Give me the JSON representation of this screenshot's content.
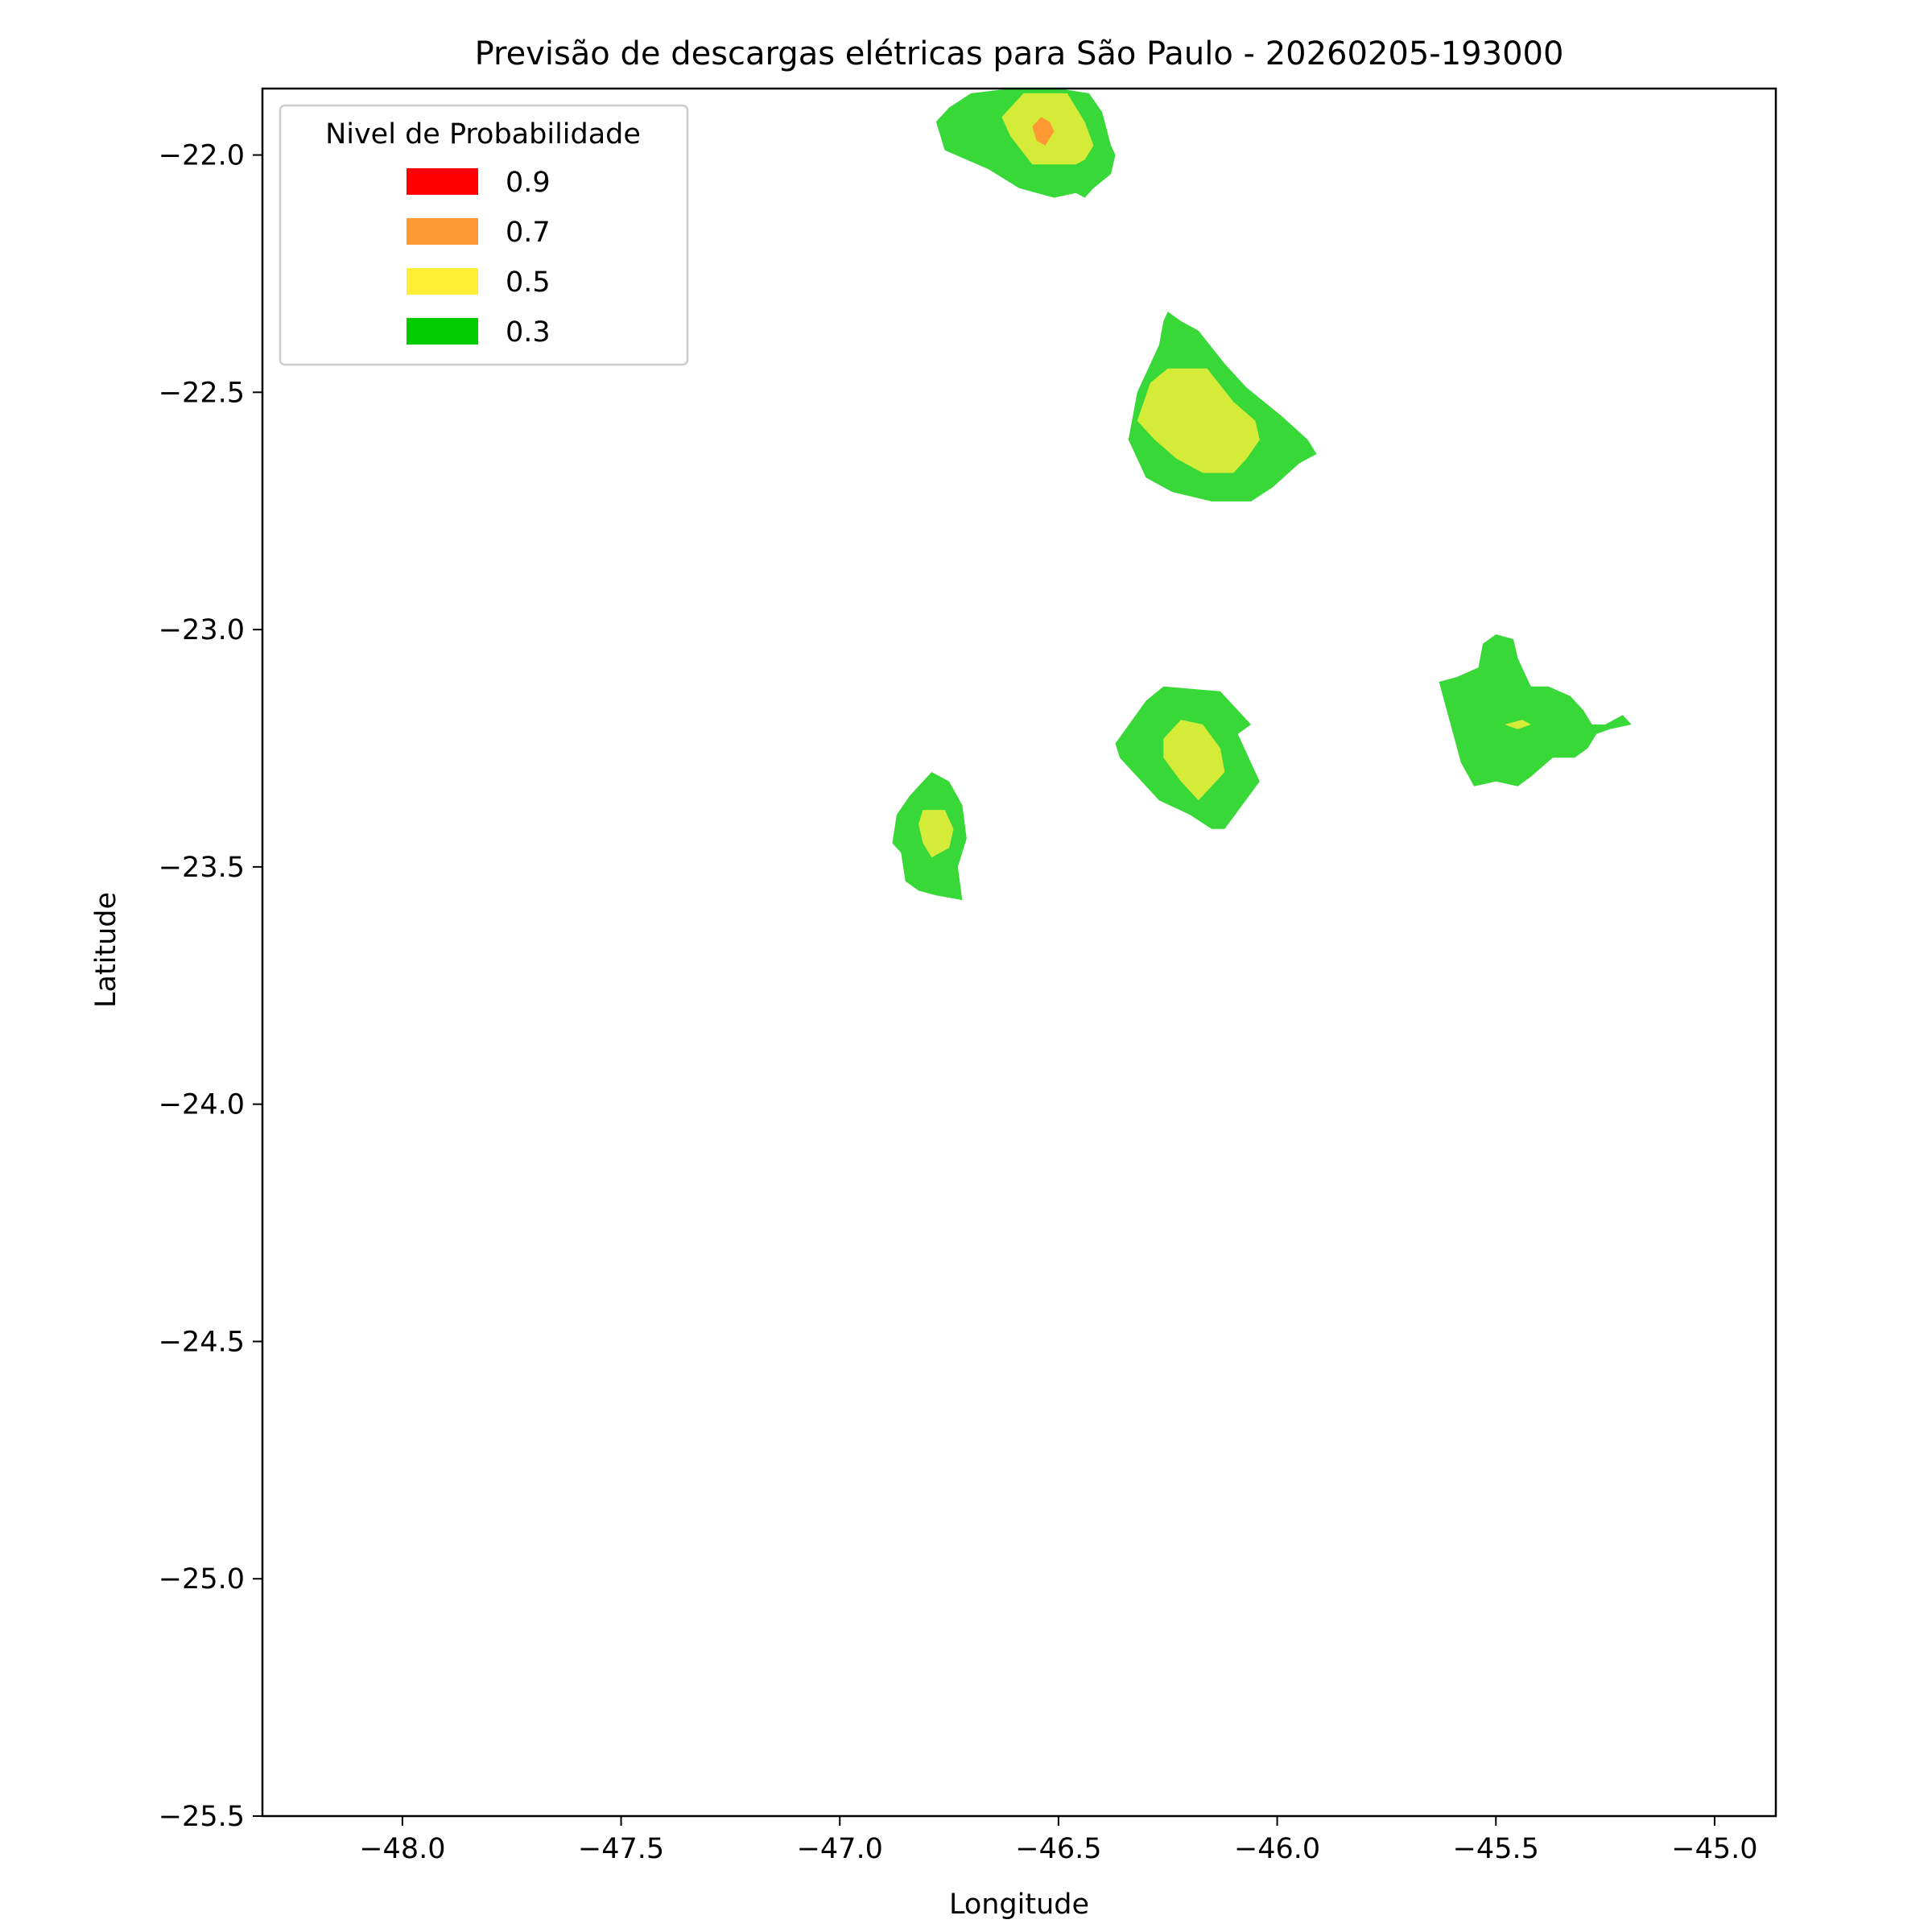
{
  "chart_data": {
    "type": "contour",
    "title": "Previsão de descargas elétricas para São Paulo - 20260205-193000",
    "xlabel": "Longitude",
    "ylabel": "Latitude",
    "xlim": [
      -48.32,
      -44.86
    ],
    "ylim": [
      -25.5,
      -21.86
    ],
    "xticks": [
      -48.0,
      -47.5,
      -47.0,
      -46.5,
      -46.0,
      -45.5,
      -45.0
    ],
    "yticks": [
      -22.0,
      -22.5,
      -23.0,
      -23.5,
      -24.0,
      -24.5,
      -25.0,
      -25.5
    ],
    "xtick_labels": [
      "−48.0",
      "−47.5",
      "−47.0",
      "−46.5",
      "−46.0",
      "−45.5",
      "−45.0"
    ],
    "ytick_labels": [
      "−22.0",
      "−22.5",
      "−23.0",
      "−23.5",
      "−24.0",
      "−24.5",
      "−25.0",
      "−25.5"
    ],
    "grid": false,
    "legend": {
      "title": "Nivel de Probabilidade",
      "placement": "upper-left",
      "entries": [
        {
          "label": "0.9",
          "color": "#ff0000"
        },
        {
          "label": "0.7",
          "color": "#ff9933"
        },
        {
          "label": "0.5",
          "color": "#ffee33"
        },
        {
          "label": "0.3",
          "color": "#00cc00"
        }
      ]
    },
    "series": [
      {
        "level": "0.3",
        "fill": "#38d838",
        "polygons": [
          [
            [
              -46.76,
              -21.99
            ],
            [
              -46.78,
              -21.93
            ],
            [
              -46.75,
              -21.9
            ],
            [
              -46.7,
              -21.87
            ],
            [
              -46.61,
              -21.86
            ],
            [
              -46.5,
              -21.86
            ],
            [
              -46.43,
              -21.87
            ],
            [
              -46.4,
              -21.91
            ],
            [
              -46.38,
              -21.98
            ],
            [
              -46.37,
              -22.0
            ],
            [
              -46.38,
              -22.04
            ],
            [
              -46.42,
              -22.07
            ],
            [
              -46.44,
              -22.09
            ],
            [
              -46.46,
              -22.08
            ],
            [
              -46.51,
              -22.09
            ],
            [
              -46.59,
              -22.07
            ],
            [
              -46.66,
              -22.03
            ]
          ],
          [
            [
              -46.34,
              -22.6
            ],
            [
              -46.32,
              -22.5
            ],
            [
              -46.3,
              -22.46
            ],
            [
              -46.27,
              -22.4
            ],
            [
              -46.26,
              -22.35
            ],
            [
              -46.25,
              -22.33
            ],
            [
              -46.22,
              -22.35
            ],
            [
              -46.18,
              -22.37
            ],
            [
              -46.12,
              -22.44
            ],
            [
              -46.07,
              -22.49
            ],
            [
              -45.99,
              -22.55
            ],
            [
              -45.93,
              -22.6
            ],
            [
              -45.91,
              -22.63
            ],
            [
              -45.95,
              -22.65
            ],
            [
              -46.01,
              -22.7
            ],
            [
              -46.06,
              -22.73
            ],
            [
              -46.15,
              -22.73
            ],
            [
              -46.24,
              -22.71
            ],
            [
              -46.3,
              -22.68
            ]
          ],
          [
            [
              -46.37,
              -23.24
            ],
            [
              -46.3,
              -23.15
            ],
            [
              -46.26,
              -23.12
            ],
            [
              -46.13,
              -23.13
            ],
            [
              -46.06,
              -23.2
            ],
            [
              -46.09,
              -23.22
            ],
            [
              -46.04,
              -23.32
            ],
            [
              -46.08,
              -23.37
            ],
            [
              -46.12,
              -23.42
            ],
            [
              -46.15,
              -23.42
            ],
            [
              -46.2,
              -23.39
            ],
            [
              -46.27,
              -23.36
            ],
            [
              -46.32,
              -23.31
            ],
            [
              -46.36,
              -23.27
            ]
          ],
          [
            [
              -46.87,
              -23.39
            ],
            [
              -46.84,
              -23.35
            ],
            [
              -46.79,
              -23.3
            ],
            [
              -46.75,
              -23.32
            ],
            [
              -46.72,
              -23.37
            ],
            [
              -46.71,
              -23.44
            ],
            [
              -46.73,
              -23.5
            ],
            [
              -46.72,
              -23.57
            ],
            [
              -46.78,
              -23.56
            ],
            [
              -46.82,
              -23.55
            ],
            [
              -46.85,
              -23.53
            ],
            [
              -46.86,
              -23.47
            ],
            [
              -46.88,
              -23.45
            ]
          ],
          [
            [
              -45.63,
              -23.11
            ],
            [
              -45.58,
              -23.28
            ],
            [
              -45.55,
              -23.33
            ],
            [
              -45.5,
              -23.32
            ],
            [
              -45.45,
              -23.33
            ],
            [
              -45.42,
              -23.31
            ],
            [
              -45.37,
              -23.27
            ],
            [
              -45.32,
              -23.27
            ],
            [
              -45.29,
              -23.25
            ],
            [
              -45.27,
              -23.22
            ],
            [
              -45.24,
              -23.21
            ],
            [
              -45.19,
              -23.2
            ],
            [
              -45.21,
              -23.18
            ],
            [
              -45.25,
              -23.2
            ],
            [
              -45.28,
              -23.2
            ],
            [
              -45.3,
              -23.17
            ],
            [
              -45.33,
              -23.14
            ],
            [
              -45.38,
              -23.12
            ],
            [
              -45.42,
              -23.12
            ],
            [
              -45.45,
              -23.06
            ],
            [
              -45.46,
              -23.02
            ],
            [
              -45.5,
              -23.01
            ],
            [
              -45.53,
              -23.03
            ],
            [
              -45.54,
              -23.08
            ],
            [
              -45.59,
              -23.1
            ]
          ]
        ]
      },
      {
        "level": "0.5",
        "fill": "#d4ec38",
        "polygons": [
          [
            [
              -46.63,
              -21.92
            ],
            [
              -46.58,
              -21.87
            ],
            [
              -46.48,
              -21.87
            ],
            [
              -46.44,
              -21.93
            ],
            [
              -46.42,
              -21.98
            ],
            [
              -46.44,
              -22.01
            ],
            [
              -46.46,
              -22.02
            ],
            [
              -46.5,
              -22.02
            ],
            [
              -46.56,
              -22.02
            ],
            [
              -46.61,
              -21.96
            ]
          ],
          [
            [
              -46.32,
              -22.56
            ],
            [
              -46.29,
              -22.48
            ],
            [
              -46.25,
              -22.45
            ],
            [
              -46.16,
              -22.45
            ],
            [
              -46.1,
              -22.52
            ],
            [
              -46.05,
              -22.56
            ],
            [
              -46.04,
              -22.6
            ],
            [
              -46.07,
              -22.64
            ],
            [
              -46.1,
              -22.67
            ],
            [
              -46.17,
              -22.67
            ],
            [
              -46.23,
              -22.64
            ],
            [
              -46.28,
              -22.6
            ]
          ],
          [
            [
              -46.26,
              -23.23
            ],
            [
              -46.22,
              -23.19
            ],
            [
              -46.17,
              -23.2
            ],
            [
              -46.13,
              -23.25
            ],
            [
              -46.12,
              -23.3
            ],
            [
              -46.15,
              -23.33
            ],
            [
              -46.18,
              -23.36
            ],
            [
              -46.22,
              -23.32
            ],
            [
              -46.26,
              -23.27
            ]
          ],
          [
            [
              -46.82,
              -23.41
            ],
            [
              -46.81,
              -23.38
            ],
            [
              -46.76,
              -23.38
            ],
            [
              -46.74,
              -23.42
            ],
            [
              -46.75,
              -23.46
            ],
            [
              -46.79,
              -23.48
            ],
            [
              -46.81,
              -23.45
            ]
          ],
          [
            [
              -45.48,
              -23.2
            ],
            [
              -45.45,
              -23.21
            ],
            [
              -45.42,
              -23.2
            ],
            [
              -45.44,
              -23.19
            ]
          ]
        ]
      },
      {
        "level": "0.7",
        "fill": "#ff9933",
        "polygons": [
          [
            [
              -46.56,
              -21.94
            ],
            [
              -46.54,
              -21.92
            ],
            [
              -46.52,
              -21.93
            ],
            [
              -46.51,
              -21.95
            ],
            [
              -46.53,
              -21.98
            ],
            [
              -46.55,
              -21.97
            ]
          ]
        ]
      }
    ]
  }
}
